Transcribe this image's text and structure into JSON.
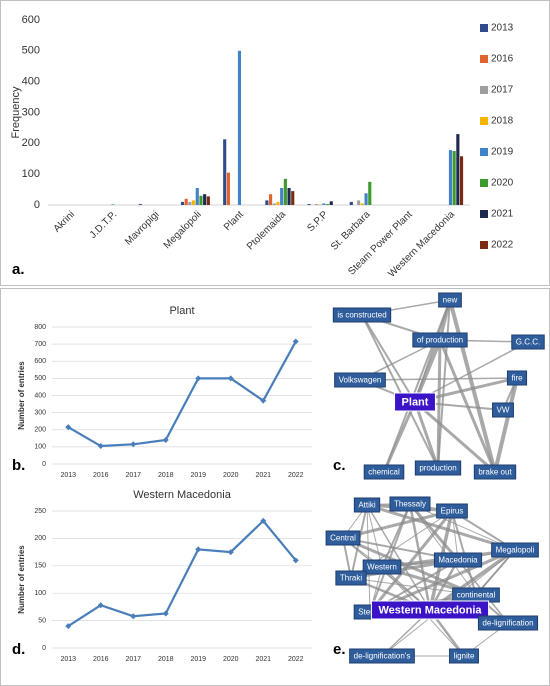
{
  "panels": [
    "a.",
    "b.",
    "c.",
    "d.",
    "e."
  ],
  "chart_data": [
    {
      "type": "bar",
      "y_label": "Frequency",
      "categories": [
        "Akrini",
        "J.D.T.P.",
        "Mavropigi",
        "Megalopoli",
        "Plant",
        "Ptolemaida",
        "S.P.P",
        "St. Barbara",
        "Steam Power Plant",
        "Western Macedonia"
      ],
      "series": [
        {
          "name": "2013",
          "color": "#2f4b8c",
          "values": [
            0,
            0,
            3,
            10,
            213,
            15,
            3,
            10,
            0,
            0
          ]
        },
        {
          "name": "2016",
          "color": "#e2622e",
          "values": [
            0,
            0,
            0,
            20,
            105,
            35,
            0,
            0,
            0,
            0
          ]
        },
        {
          "name": "2017",
          "color": "#9e9e9e",
          "values": [
            0,
            0,
            0,
            10,
            0,
            5,
            3,
            15,
            0,
            0
          ]
        },
        {
          "name": "2018",
          "color": "#f5b400",
          "values": [
            0,
            0,
            0,
            15,
            0,
            10,
            2,
            5,
            0,
            0
          ]
        },
        {
          "name": "2019",
          "color": "#4182c9",
          "values": [
            0,
            2,
            0,
            55,
            500,
            55,
            5,
            38,
            0,
            178
          ]
        },
        {
          "name": "2020",
          "color": "#3e9a2e",
          "values": [
            0,
            0,
            0,
            30,
            0,
            85,
            3,
            75,
            0,
            175
          ]
        },
        {
          "name": "2021",
          "color": "#1c2a4f",
          "values": [
            0,
            0,
            0,
            35,
            0,
            55,
            12,
            0,
            0,
            230
          ]
        },
        {
          "name": "2022",
          "color": "#7a2a10",
          "values": [
            0,
            0,
            0,
            28,
            0,
            45,
            0,
            0,
            0,
            158
          ]
        }
      ],
      "ylim": [
        0,
        600
      ],
      "yticks": [
        0,
        100,
        200,
        300,
        400,
        500,
        600
      ],
      "grid": false,
      "legend": "right"
    },
    {
      "type": "line",
      "title": "Plant",
      "y_label": "Number of entries",
      "categories": [
        "2013",
        "2016",
        "2017",
        "2018",
        "2019",
        "2020",
        "2021",
        "2022"
      ],
      "values": [
        215,
        105,
        115,
        140,
        500,
        500,
        370,
        715
      ],
      "color": "#4a7ebb",
      "ylim": [
        0,
        800
      ],
      "yticks": [
        0,
        100,
        200,
        300,
        400,
        500,
        600,
        700,
        800
      ],
      "grid": true
    },
    {
      "type": "line",
      "title": "Western Macedonia",
      "y_label": "Number of entries",
      "categories": [
        "2013",
        "2016",
        "2017",
        "2018",
        "2019",
        "2020",
        "2021",
        "2022"
      ],
      "values": [
        40,
        78,
        58,
        63,
        180,
        175,
        232,
        160
      ],
      "color": "#4a7ebb",
      "ylim": [
        0,
        250
      ],
      "yticks": [
        0,
        50,
        100,
        150,
        200,
        250
      ],
      "grid": true
    }
  ],
  "networks": [
    {
      "nodes": [
        "new",
        "is constructed",
        "of production",
        "G.C.C.",
        "Volkswagen",
        "Plant",
        "fire",
        "VW",
        "chemical",
        "production",
        "brake out"
      ]
    },
    {
      "nodes": [
        "Attiki",
        "Thessaly",
        "Epirus",
        "Central",
        "Macedonia",
        "Megalopoli",
        "Western",
        "Thraki",
        "continental",
        "Sterea",
        "Western Macedonia",
        "de-lignification",
        "de-lignification's",
        "lignite"
      ]
    }
  ]
}
